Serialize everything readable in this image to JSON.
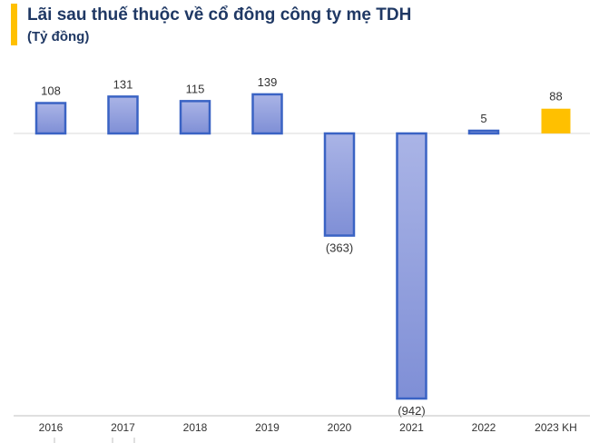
{
  "header": {
    "title": "Lãi sau thuế thuộc về cổ đông công ty mẹ TDH",
    "subtitle": "(Tỷ đồng)"
  },
  "colors": {
    "accent": "#ffc000",
    "title": "#1f3864",
    "bar_fill_top": "#aab4e6",
    "bar_fill_bottom": "#7f8fd6",
    "bar_stroke": "#3a63c4",
    "plan_bar": "#ffc000",
    "label_text": "#333333",
    "axis_line": "#bfbfbf"
  },
  "chart_data": {
    "type": "bar",
    "title": "Lãi sau thuế thuộc về cổ đông công ty mẹ TDH",
    "subtitle": "(Tỷ đồng)",
    "categories": [
      "2016",
      "2017",
      "2018",
      "2019",
      "2020",
      "2021",
      "2022",
      "2023 KH"
    ],
    "values": [
      108,
      131,
      115,
      139,
      -363,
      -942,
      5,
      88
    ],
    "data_labels": [
      "108",
      "131",
      "115",
      "139",
      "(363)",
      "(942)",
      "5",
      "88"
    ],
    "highlight_category": "2023 KH",
    "xlabel": "",
    "ylabel": "",
    "ylim": [
      -942,
      139
    ],
    "grid": false,
    "legend": "none"
  }
}
